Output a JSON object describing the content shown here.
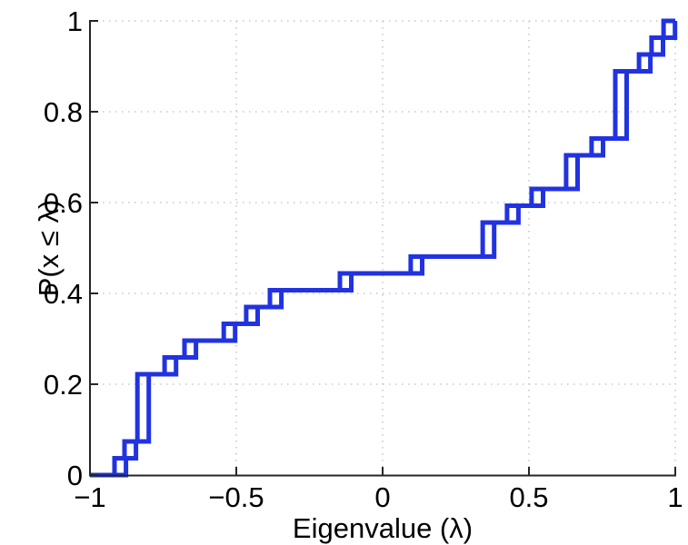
{
  "figure": {
    "background": "#ffffff",
    "axis_color": "#262626",
    "grid_color": "#c8c8c8",
    "text_color": "#000000"
  },
  "chart_data": {
    "type": "step",
    "subtype": "empirical-cdf",
    "title": "",
    "xlabel": "Eigenvalue (λ)",
    "ylabel": "P(x ≤ λ)",
    "xlim": [
      -1,
      1
    ],
    "ylim": [
      0,
      1
    ],
    "x_ticks": [
      -1,
      -0.5,
      0,
      0.5,
      1
    ],
    "x_tick_labels": [
      "−1",
      "−0.5",
      "0",
      "0.5",
      "1"
    ],
    "y_ticks": [
      0,
      0.2,
      0.4,
      0.6,
      0.8,
      1
    ],
    "y_tick_labels": [
      "0",
      "0.2",
      "0.4",
      "0.6",
      "0.8",
      "1"
    ],
    "grid": true,
    "grid_style": "dotted",
    "legend": null,
    "line_color": "#2133e0",
    "line_width": 5,
    "n_samples": 27,
    "step_multiplicities": [
      1,
      1,
      4,
      1,
      1,
      1,
      1,
      1,
      1,
      1,
      2,
      1,
      1,
      2,
      1,
      4,
      1,
      1,
      1
    ],
    "cdf_levels_after_jump": [
      0.037,
      0.074,
      0.222,
      0.259,
      0.296,
      0.333,
      0.37,
      0.407,
      0.444,
      0.481,
      0.556,
      0.593,
      0.63,
      0.704,
      0.741,
      0.889,
      0.926,
      0.963,
      1.0
    ],
    "series": [
      {
        "name": "ecdf-curve-1",
        "jump_x": [
          -0.916,
          -0.882,
          -0.838,
          -0.745,
          -0.677,
          -0.543,
          -0.466,
          -0.385,
          -0.146,
          0.096,
          0.342,
          0.425,
          0.509,
          0.627,
          0.714,
          0.795,
          0.876,
          0.919,
          0.96
        ]
      },
      {
        "name": "ecdf-curve-2",
        "jump_x": [
          -0.877,
          -0.843,
          -0.799,
          -0.706,
          -0.638,
          -0.504,
          -0.427,
          -0.346,
          -0.107,
          0.135,
          0.381,
          0.464,
          0.548,
          0.666,
          0.753,
          0.834,
          0.915,
          0.958,
          0.999
        ]
      }
    ]
  }
}
